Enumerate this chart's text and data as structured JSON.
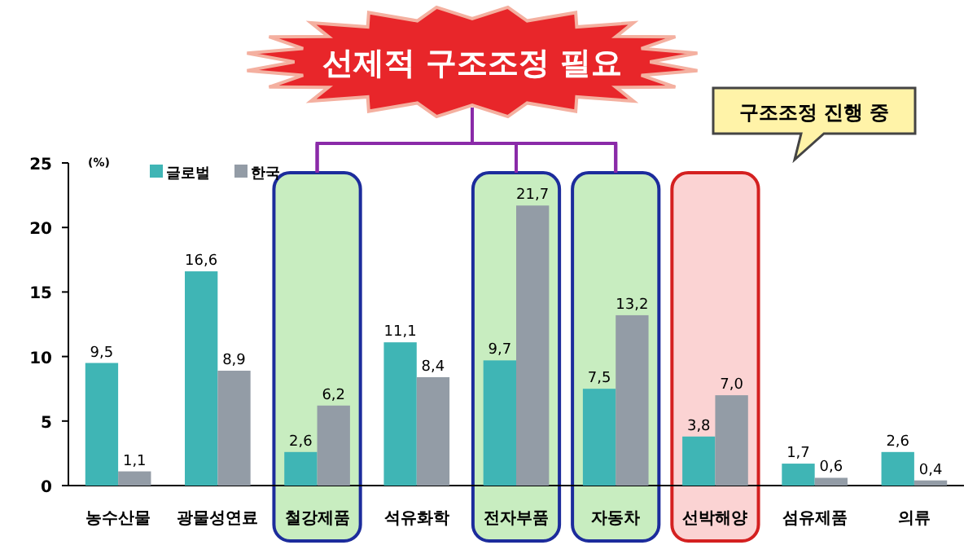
{
  "chart_data": {
    "type": "bar",
    "title": "선제적 구조조정 필요",
    "ylabel": "(%)",
    "categories": [
      "농수산물",
      "광물성연료",
      "철강제품",
      "석유화학",
      "전자부품",
      "자동차",
      "선박해양",
      "섬유제품",
      "의류"
    ],
    "series": [
      {
        "name": "글로벌",
        "color": "#3fb5b5",
        "values": [
          9.5,
          16.6,
          2.6,
          11.1,
          9.7,
          7.5,
          3.8,
          1.7,
          2.6
        ],
        "value_labels": [
          "9,5",
          "16,6",
          "2,6",
          "11,1",
          "9,7",
          "7,5",
          "3,8",
          "1,7",
          "2,6"
        ]
      },
      {
        "name": "한국",
        "color": "#939ca6",
        "values": [
          1.1,
          8.9,
          6.2,
          8.4,
          21.7,
          13.2,
          7.0,
          0.6,
          0.4
        ],
        "value_labels": [
          "1,1",
          "8,9",
          "6,2",
          "8,4",
          "21,7",
          "13,2",
          "7,0",
          "0,6",
          "0,4"
        ]
      }
    ],
    "ylim": [
      0,
      25
    ],
    "yticks": [
      0,
      5,
      10,
      15,
      20,
      25
    ],
    "grid": false,
    "legend": "top left",
    "bands": [
      {
        "axis": "x",
        "from": "철강제품",
        "to": "철강제품",
        "color": "#c8edc0"
      },
      {
        "axis": "x",
        "from": "전자부품",
        "to": "전자부품",
        "color": "#c8edc0"
      },
      {
        "axis": "x",
        "from": "자동차",
        "to": "자동차",
        "color": "#c8edc0"
      },
      {
        "axis": "x",
        "from": "선박해양",
        "to": "선박해양",
        "color": "#fbd3d3"
      }
    ],
    "annotations": [
      "구조조정 진행 중"
    ]
  }
}
